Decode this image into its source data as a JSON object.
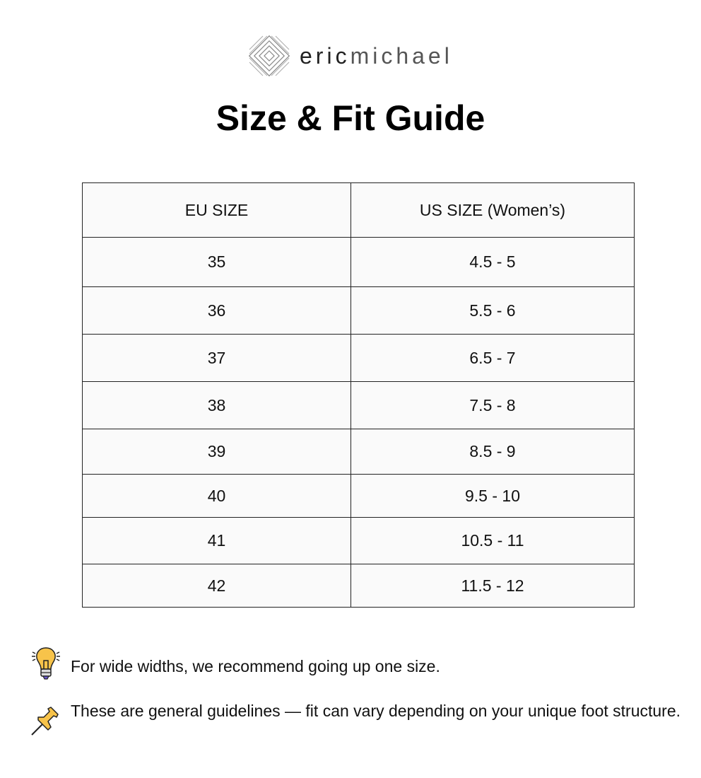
{
  "brand": {
    "name_bold": "eric",
    "name_light": "michael"
  },
  "title": "Size & Fit Guide",
  "table": {
    "headers": [
      "EU SIZE",
      "US SIZE (Women’s)"
    ],
    "rows": [
      [
        "35",
        "4.5 - 5"
      ],
      [
        "36",
        "5.5 - 6"
      ],
      [
        "37",
        "6.5 - 7"
      ],
      [
        "38",
        "7.5 - 8"
      ],
      [
        "39",
        "8.5 - 9"
      ],
      [
        "40",
        "9.5 - 10"
      ],
      [
        "41",
        "10.5 - 11"
      ],
      [
        "42",
        "11.5 - 12"
      ]
    ]
  },
  "notes": [
    {
      "icon": "lightbulb-icon",
      "text": "For wide widths, we recommend going up one size."
    },
    {
      "icon": "pushpin-icon",
      "text": "These are general guidelines — fit can vary depending on your unique foot structure."
    }
  ],
  "colors": {
    "icon_fill": "#f7c34a",
    "border": "#222222",
    "table_bg": "#fafafa"
  }
}
